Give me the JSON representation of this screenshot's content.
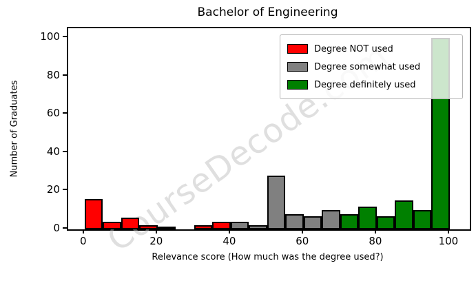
{
  "title": "Bachelor of Engineering",
  "watermark": "CourseDecode.com",
  "chart_data": {
    "type": "bar",
    "subtype": "histogram",
    "title": "Bachelor of Engineering",
    "xlabel": "Relevance score (How much was the degree used?)",
    "ylabel": "Number of Graduates",
    "xlim": [
      -4.5,
      105.5
    ],
    "ylim": [
      0,
      105
    ],
    "xticks": [
      "0",
      "20",
      "40",
      "60",
      "80",
      "100"
    ],
    "yticks": [
      "0",
      "20",
      "40",
      "60",
      "80",
      "100"
    ],
    "xtick_values": [
      0,
      20,
      40,
      60,
      80,
      100
    ],
    "ytick_values": [
      0,
      20,
      40,
      60,
      80,
      100
    ],
    "bin_width": 5,
    "grid": false,
    "legend_position": "top-right",
    "series": [
      {
        "name": "Degree NOT used",
        "color": "#ff0000",
        "bins": [
          [
            0,
            16
          ],
          [
            5,
            4
          ],
          [
            10,
            6
          ],
          [
            15,
            2
          ],
          [
            20,
            1
          ],
          [
            25,
            0
          ],
          [
            30,
            2
          ],
          [
            35,
            4
          ]
        ]
      },
      {
        "name": "Degree somewhat used",
        "color": "#808080",
        "bins": [
          [
            40,
            4
          ],
          [
            45,
            2
          ],
          [
            50,
            28
          ],
          [
            55,
            8
          ],
          [
            60,
            7
          ],
          [
            65,
            10
          ]
        ]
      },
      {
        "name": "Degree definitely used",
        "color": "#008000",
        "bins": [
          [
            70,
            8
          ],
          [
            75,
            12
          ],
          [
            80,
            7
          ],
          [
            85,
            15
          ],
          [
            90,
            10
          ],
          [
            95,
            100
          ]
        ]
      }
    ]
  }
}
